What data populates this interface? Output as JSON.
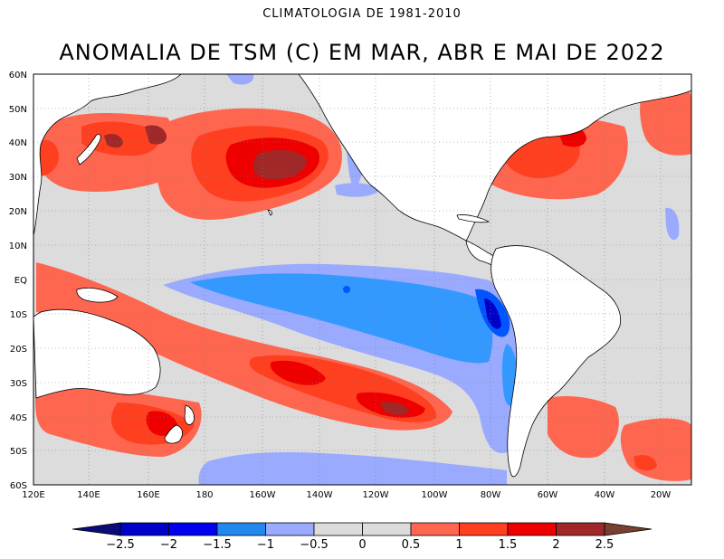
{
  "supertitle": "CLIMATOLOGIA DE 1981-2010",
  "title": "ANOMALIA DE TSM (C) EM MAR, ABR E MAI DE 2022",
  "axes": {
    "y_ticks": [
      "60N",
      "50N",
      "40N",
      "30N",
      "20N",
      "10N",
      "EQ",
      "10S",
      "20S",
      "30S",
      "40S",
      "50S",
      "60S"
    ],
    "x_ticks": [
      "120E",
      "140E",
      "160E",
      "180",
      "160W",
      "140W",
      "120W",
      "100W",
      "80W",
      "60W",
      "40W",
      "20W"
    ]
  },
  "colorbar": {
    "ticks": [
      "−2.5",
      "−2",
      "−1.5",
      "−1",
      "−0.5",
      "0",
      "0.5",
      "1",
      "1.5",
      "2",
      "2.5"
    ],
    "colors": [
      "#0b0b7a",
      "#0000c8",
      "#0055ff",
      "#3399ff",
      "#99aaff",
      "#dcdcdc",
      "#dcdcdc",
      "#ff6650",
      "#ff4020",
      "#ee0000",
      "#a02828",
      "#784030"
    ]
  },
  "colors": {
    "land": "#ffffff",
    "neutral": "#dcdcdc",
    "warm_025": "#ff6650",
    "warm_1": "#ff4020",
    "warm_15": "#ee0000",
    "warm_2": "#a02828",
    "cool_05": "#99aaff",
    "cool_1": "#3399ff",
    "cool_15": "#0055ff",
    "cool_2": "#0000c8"
  }
}
